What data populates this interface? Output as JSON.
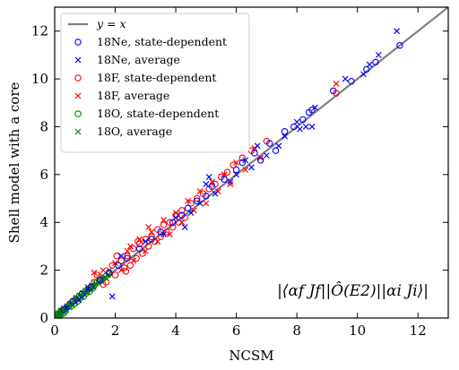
{
  "chart_data": {
    "type": "scatter",
    "xlabel": "NCSM",
    "ylabel": "Shell model with a core",
    "xlim": [
      0,
      13
    ],
    "ylim": [
      0,
      13
    ],
    "xticks": [
      0,
      2,
      4,
      6,
      8,
      10,
      12
    ],
    "yticks": [
      0,
      2,
      4,
      6,
      8,
      10,
      12
    ],
    "legend_placement": "top-left",
    "annotation": "|⟨αf Jf||Ô(E2)||αi Ji⟩|",
    "reference_line": {
      "name": "y = x",
      "color": "#808080"
    },
    "series": [
      {
        "name": "18Ne, state-dependent",
        "marker": "circle",
        "color": "#0000ff",
        "points": [
          [
            0.3,
            0.35
          ],
          [
            0.6,
            0.7
          ],
          [
            0.9,
            1.0
          ],
          [
            1.2,
            1.3
          ],
          [
            1.5,
            1.6
          ],
          [
            1.8,
            1.9
          ],
          [
            2.1,
            2.2
          ],
          [
            2.4,
            2.5
          ],
          [
            2.8,
            2.9
          ],
          [
            3.2,
            3.3
          ],
          [
            3.5,
            3.6
          ],
          [
            3.9,
            4.0
          ],
          [
            4.2,
            4.3
          ],
          [
            4.4,
            4.6
          ],
          [
            4.7,
            4.9
          ],
          [
            5.0,
            5.1
          ],
          [
            5.2,
            5.5
          ],
          [
            5.6,
            5.8
          ],
          [
            6.0,
            6.2
          ],
          [
            6.2,
            6.5
          ],
          [
            6.6,
            6.9
          ],
          [
            6.8,
            6.6
          ],
          [
            7.1,
            7.3
          ],
          [
            7.3,
            7.0
          ],
          [
            7.6,
            7.8
          ],
          [
            7.9,
            8.0
          ],
          [
            8.2,
            8.3
          ],
          [
            8.4,
            8.6
          ],
          [
            8.5,
            8.7
          ],
          [
            9.2,
            9.5
          ],
          [
            9.8,
            9.9
          ],
          [
            10.3,
            10.4
          ],
          [
            10.6,
            10.7
          ],
          [
            11.4,
            11.4
          ]
        ]
      },
      {
        "name": "18Ne, average",
        "marker": "x",
        "color": "#0000ff",
        "points": [
          [
            0.4,
            0.45
          ],
          [
            0.8,
            0.75
          ],
          [
            1.1,
            1.2
          ],
          [
            1.9,
            0.9
          ],
          [
            2.2,
            2.6
          ],
          [
            3.0,
            3.2
          ],
          [
            3.6,
            3.5
          ],
          [
            4.0,
            4.2
          ],
          [
            4.3,
            3.8
          ],
          [
            4.5,
            4.4
          ],
          [
            4.8,
            4.8
          ],
          [
            5.0,
            5.6
          ],
          [
            5.1,
            5.9
          ],
          [
            5.3,
            5.2
          ],
          [
            5.8,
            5.7
          ],
          [
            6.0,
            6.0
          ],
          [
            6.3,
            6.6
          ],
          [
            6.5,
            6.3
          ],
          [
            6.7,
            7.2
          ],
          [
            7.0,
            6.8
          ],
          [
            7.4,
            7.2
          ],
          [
            7.6,
            7.6
          ],
          [
            8.0,
            8.2
          ],
          [
            8.1,
            7.9
          ],
          [
            8.3,
            8.0
          ],
          [
            8.5,
            8.0
          ],
          [
            8.6,
            8.8
          ],
          [
            9.6,
            10.0
          ],
          [
            10.2,
            10.2
          ],
          [
            10.4,
            10.6
          ],
          [
            10.7,
            11.0
          ],
          [
            11.3,
            12.0
          ]
        ]
      },
      {
        "name": "18F, state-dependent",
        "marker": "circle",
        "color": "#ff0000",
        "points": [
          [
            0.2,
            0.3
          ],
          [
            0.5,
            0.6
          ],
          [
            0.8,
            0.9
          ],
          [
            1.0,
            1.1
          ],
          [
            1.3,
            1.5
          ],
          [
            1.5,
            1.7
          ],
          [
            1.7,
            1.5
          ],
          [
            1.9,
            2.2
          ],
          [
            2.0,
            1.8
          ],
          [
            2.2,
            2.4
          ],
          [
            2.3,
            2.1
          ],
          [
            2.4,
            2.6
          ],
          [
            2.5,
            2.2
          ],
          [
            2.6,
            2.9
          ],
          [
            2.7,
            2.5
          ],
          [
            2.8,
            3.1
          ],
          [
            2.9,
            2.7
          ],
          [
            3.0,
            3.3
          ],
          [
            3.1,
            3.0
          ],
          [
            3.2,
            3.4
          ],
          [
            3.3,
            3.2
          ],
          [
            3.4,
            3.7
          ],
          [
            3.5,
            3.4
          ],
          [
            3.6,
            3.9
          ],
          [
            3.7,
            3.6
          ],
          [
            3.8,
            4.0
          ],
          [
            3.9,
            3.8
          ],
          [
            4.0,
            4.3
          ],
          [
            4.1,
            4.0
          ],
          [
            4.2,
            4.5
          ],
          [
            4.3,
            4.2
          ],
          [
            4.5,
            4.8
          ],
          [
            4.7,
            5.0
          ],
          [
            4.9,
            5.2
          ],
          [
            5.1,
            5.4
          ],
          [
            5.3,
            5.6
          ],
          [
            5.5,
            5.9
          ],
          [
            5.7,
            6.1
          ],
          [
            5.9,
            6.4
          ],
          [
            6.2,
            6.7
          ],
          [
            6.5,
            7.0
          ],
          [
            7.0,
            7.4
          ],
          [
            9.3,
            9.4
          ],
          [
            1.4,
            1.8
          ],
          [
            1.6,
            1.4
          ],
          [
            2.05,
            2.6
          ],
          [
            2.35,
            1.95
          ],
          [
            2.75,
            3.2
          ]
        ]
      },
      {
        "name": "18F, average",
        "marker": "x",
        "color": "#ff0000",
        "points": [
          [
            0.3,
            0.4
          ],
          [
            0.7,
            0.8
          ],
          [
            1.1,
            1.3
          ],
          [
            1.3,
            1.9
          ],
          [
            1.6,
            2.0
          ],
          [
            1.8,
            2.0
          ],
          [
            2.0,
            2.3
          ],
          [
            2.2,
            2.0
          ],
          [
            2.4,
            2.8
          ],
          [
            2.6,
            2.4
          ],
          [
            2.8,
            3.3
          ],
          [
            3.0,
            2.8
          ],
          [
            3.2,
            3.6
          ],
          [
            3.4,
            3.2
          ],
          [
            3.6,
            4.1
          ],
          [
            3.8,
            3.5
          ],
          [
            4.0,
            4.4
          ],
          [
            4.2,
            4.0
          ],
          [
            4.4,
            4.9
          ],
          [
            4.6,
            4.5
          ],
          [
            4.8,
            5.3
          ],
          [
            5.0,
            4.8
          ],
          [
            5.2,
            5.7
          ],
          [
            5.4,
            5.3
          ],
          [
            5.6,
            6.0
          ],
          [
            5.8,
            5.6
          ],
          [
            6.0,
            6.5
          ],
          [
            6.3,
            6.2
          ],
          [
            6.6,
            7.1
          ],
          [
            6.8,
            6.7
          ],
          [
            9.3,
            9.8
          ],
          [
            2.5,
            3.0
          ],
          [
            3.1,
            3.8
          ]
        ]
      },
      {
        "name": "18O, state-dependent",
        "marker": "circle",
        "color": "#008000",
        "points": [
          [
            0.05,
            0.1
          ],
          [
            0.1,
            0.15
          ],
          [
            0.15,
            0.2
          ],
          [
            0.2,
            0.25
          ],
          [
            0.25,
            0.3
          ],
          [
            0.3,
            0.35
          ],
          [
            0.35,
            0.3
          ],
          [
            0.4,
            0.45
          ],
          [
            0.45,
            0.5
          ],
          [
            0.5,
            0.55
          ],
          [
            0.55,
            0.5
          ],
          [
            0.6,
            0.7
          ],
          [
            0.65,
            0.6
          ],
          [
            0.7,
            0.8
          ],
          [
            0.75,
            0.7
          ],
          [
            0.8,
            0.9
          ],
          [
            0.85,
            0.85
          ],
          [
            0.9,
            1.0
          ],
          [
            0.95,
            0.9
          ],
          [
            1.0,
            1.1
          ],
          [
            1.05,
            1.05
          ],
          [
            1.1,
            1.2
          ],
          [
            1.15,
            1.1
          ],
          [
            1.2,
            1.3
          ],
          [
            1.25,
            1.25
          ],
          [
            1.3,
            1.35
          ],
          [
            1.4,
            1.5
          ],
          [
            1.5,
            1.55
          ],
          [
            1.6,
            1.65
          ],
          [
            1.7,
            1.75
          ],
          [
            1.8,
            1.85
          ],
          [
            0.1,
            0.05
          ],
          [
            0.2,
            0.15
          ],
          [
            0.3,
            0.2
          ]
        ]
      },
      {
        "name": "18O, average",
        "marker": "x",
        "color": "#008000",
        "points": [
          [
            0.05,
            0.08
          ],
          [
            0.12,
            0.2
          ],
          [
            0.18,
            0.15
          ],
          [
            0.22,
            0.3
          ],
          [
            0.28,
            0.25
          ],
          [
            0.32,
            0.4
          ],
          [
            0.38,
            0.35
          ],
          [
            0.42,
            0.5
          ],
          [
            0.48,
            0.45
          ],
          [
            0.52,
            0.6
          ],
          [
            0.58,
            0.55
          ],
          [
            0.62,
            0.72
          ],
          [
            0.68,
            0.65
          ],
          [
            0.72,
            0.85
          ],
          [
            0.78,
            0.75
          ],
          [
            0.82,
            0.95
          ],
          [
            0.88,
            0.9
          ],
          [
            0.92,
            1.05
          ],
          [
            0.98,
            1.0
          ],
          [
            1.02,
            1.15
          ],
          [
            1.08,
            1.1
          ],
          [
            1.12,
            1.25
          ],
          [
            1.18,
            1.2
          ],
          [
            1.22,
            1.35
          ],
          [
            1.28,
            1.3
          ],
          [
            1.35,
            1.45
          ],
          [
            1.45,
            1.5
          ],
          [
            1.55,
            1.6
          ],
          [
            1.65,
            1.7
          ],
          [
            1.75,
            1.8
          ]
        ]
      }
    ]
  }
}
